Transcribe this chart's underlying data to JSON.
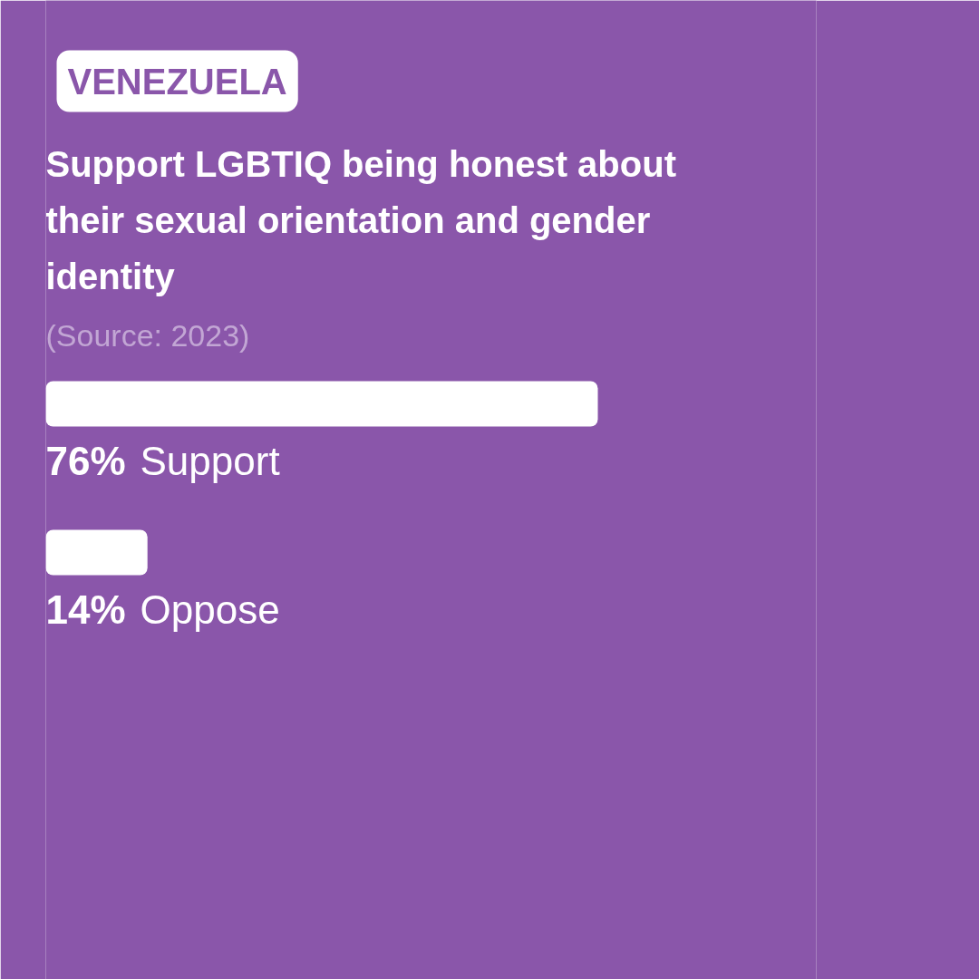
{
  "chart_data": {
    "type": "bar",
    "orientation": "horizontal",
    "title": "Support LGBTIQ being honest about their sexual orientation and gender identity",
    "subtitle": "VENEZUELA",
    "annotations": [
      "(Source: 2023)"
    ],
    "categories": [
      "Support",
      "Oppose"
    ],
    "values": [
      76,
      14
    ],
    "value_labels": [
      "76%",
      "14%"
    ],
    "color": "#ffffff",
    "tick_labels": false,
    "grid": false
  }
}
